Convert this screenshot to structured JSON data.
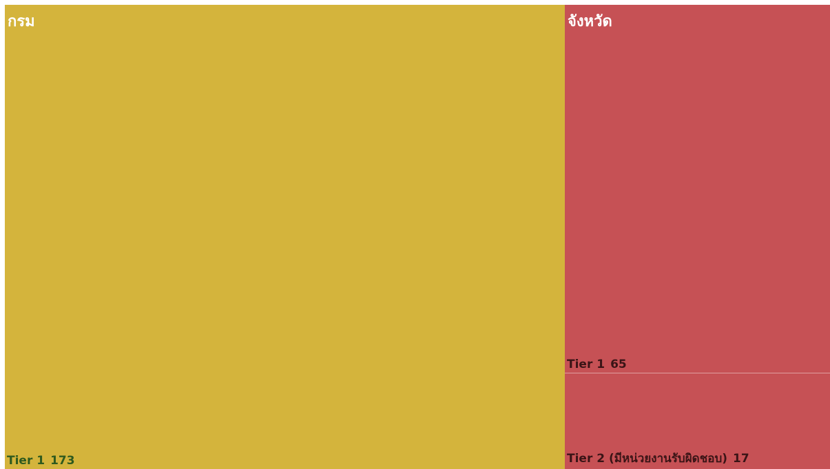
{
  "chart_data": {
    "type": "treemap",
    "groups": [
      {
        "name": "กรม",
        "color": "#d4b43c",
        "label_color": "#2f5a1e",
        "items": [
          {
            "name": "Tier 1",
            "value": 173
          }
        ]
      },
      {
        "name": "จังหวัด",
        "color": "#c65155",
        "label_color": "#3a1416",
        "items": [
          {
            "name": "Tier 1",
            "value": 65
          },
          {
            "name": "Tier 2 (มีหน่วยงานรับผิดชอบ)",
            "value": 17
          }
        ]
      }
    ]
  }
}
